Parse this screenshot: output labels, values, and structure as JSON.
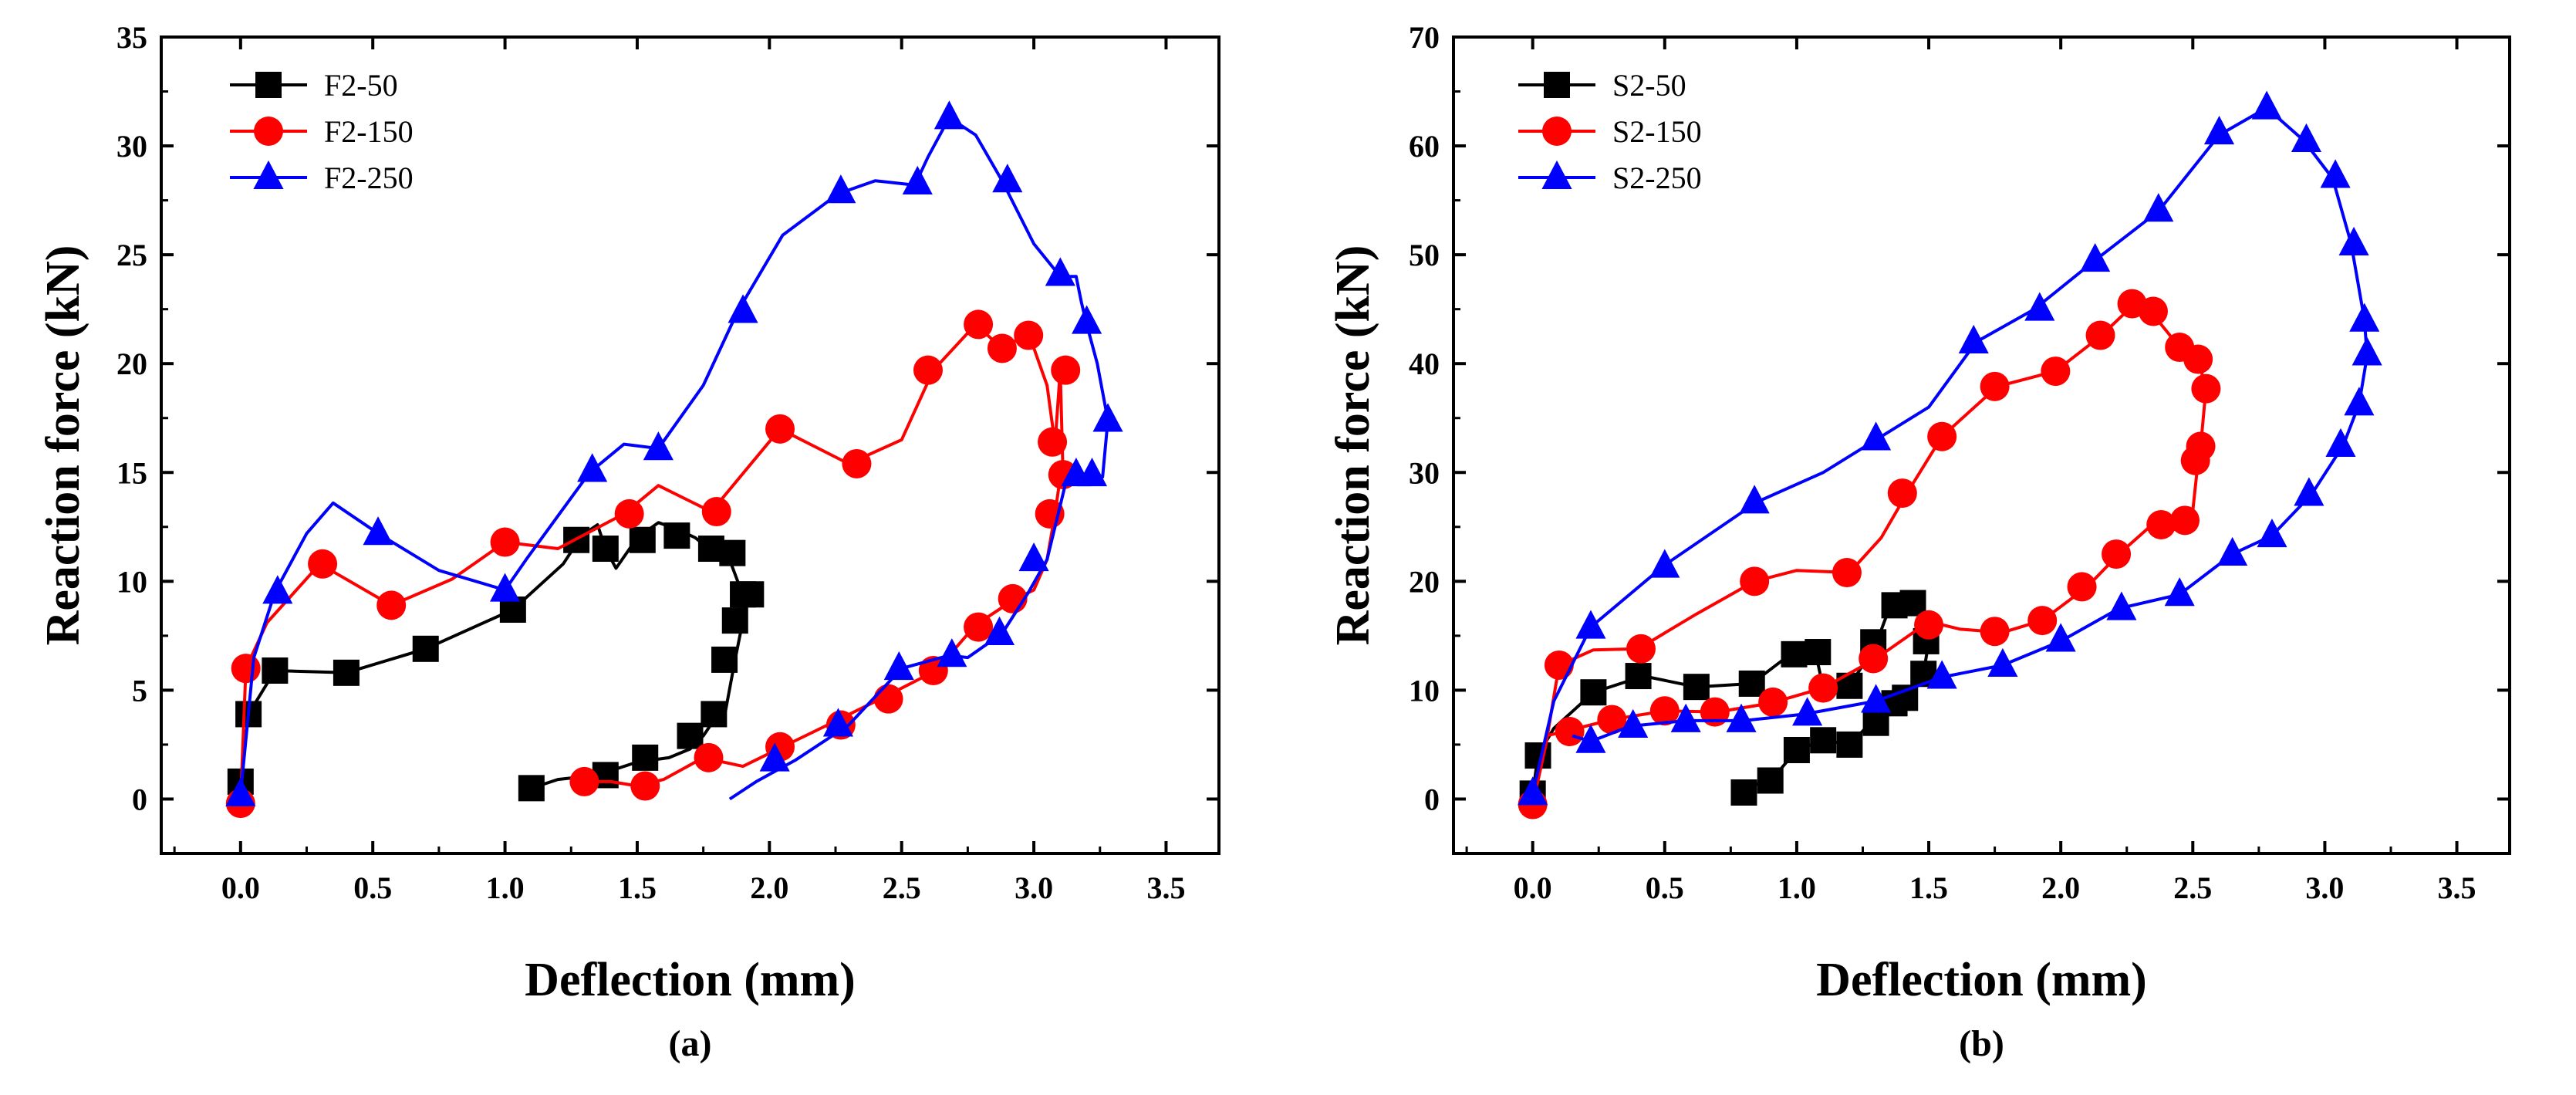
{
  "chart_data": [
    {
      "type": "line",
      "caption": "(a)",
      "xlabel": "Deflection (mm)",
      "ylabel": "Reaction force (kN)",
      "xlim": [
        -0.3,
        3.7
      ],
      "ylim": [
        -2.5,
        35
      ],
      "xticks": [
        "0.0",
        "0.5",
        "1.0",
        "1.5",
        "2.0",
        "2.5",
        "3.0",
        "3.5"
      ],
      "xtick_values": [
        0,
        0.5,
        1,
        1.5,
        2,
        2.5,
        3,
        3.5
      ],
      "yticks": [
        "0",
        "5",
        "10",
        "15",
        "20",
        "25",
        "30",
        "35"
      ],
      "ytick_values": [
        0,
        5,
        10,
        15,
        20,
        25,
        30,
        35
      ],
      "legend_position": "top-left",
      "series": [
        {
          "name": "F2-50",
          "color": "#000000",
          "marker": "square",
          "x": [
            0,
            0.03,
            0.13,
            0.4,
            0.7,
            1.03,
            1.22,
            1.29,
            1.35,
            1.38,
            1.42,
            1.5,
            1.58,
            1.65,
            1.72,
            1.78,
            1.84,
            1.88,
            1.9,
            1.92,
            1.9,
            1.87,
            1.83,
            1.8,
            1.75,
            1.7,
            1.62,
            1.5,
            1.35,
            1.2,
            1.1
          ],
          "y": [
            0.8,
            3.9,
            5.9,
            5.8,
            6.9,
            8.7,
            10.8,
            12.1,
            12.6,
            11.5,
            10.6,
            12.0,
            12.7,
            12.4,
            12.0,
            11.4,
            11.3,
            10.0,
            9.4,
            9.6,
            8.2,
            6.4,
            3.8,
            3.8,
            2.9,
            2.3,
            1.9,
            1.7,
            1.1,
            0.9,
            0.5
          ],
          "markers_x": [
            0,
            0.03,
            0.13,
            0.4,
            0.7,
            1.03,
            1.27,
            1.38,
            1.52,
            1.65,
            1.78,
            1.86,
            1.93,
            1.9,
            1.87,
            1.83,
            1.79,
            1.7,
            1.53,
            1.38,
            1.1
          ],
          "markers_y": [
            0.8,
            3.9,
            5.9,
            5.8,
            6.9,
            8.7,
            11.9,
            11.5,
            11.9,
            12.1,
            11.5,
            11.3,
            9.4,
            9.4,
            8.2,
            6.4,
            3.9,
            2.9,
            1.9,
            1.1,
            0.5
          ]
        },
        {
          "name": "F2-150",
          "color": "#ff0000",
          "marker": "circle",
          "x": [
            0,
            0.02,
            0.1,
            0.3,
            0.57,
            0.8,
            1.0,
            1.2,
            1.45,
            1.58,
            1.78,
            2.04,
            2.3,
            2.5,
            2.62,
            2.78,
            2.88,
            2.98,
            3.05,
            3.08,
            3.1,
            3.11,
            3.1,
            3.08,
            3.05,
            3.0,
            2.93,
            2.78,
            2.63,
            2.42,
            2.22,
            2.05,
            1.9,
            1.75,
            1.6,
            1.5,
            1.4,
            1.28
          ],
          "y": [
            -0.2,
            6.0,
            8.1,
            10.8,
            8.9,
            10.1,
            11.8,
            11.5,
            13.1,
            14.4,
            13.2,
            17.0,
            15.4,
            16.5,
            19.7,
            21.8,
            20.7,
            21.4,
            19.0,
            16.3,
            19.7,
            15.0,
            14.8,
            13.1,
            11.0,
            9.6,
            9.2,
            8.0,
            5.9,
            4.6,
            3.4,
            2.4,
            1.5,
            1.9,
            0.9,
            0.6,
            0.8,
            0.8
          ],
          "markers_x": [
            0,
            0.02,
            0.31,
            0.57,
            1.0,
            1.47,
            1.8,
            2.04,
            2.33,
            2.6,
            2.79,
            2.88,
            2.98,
            3.07,
            3.12,
            3.11,
            3.06,
            2.92,
            2.79,
            2.62,
            2.45,
            2.27,
            2.04,
            1.77,
            1.53,
            1.3
          ],
          "markers_y": [
            -0.2,
            6.0,
            10.8,
            8.9,
            11.8,
            13.1,
            13.2,
            17.0,
            15.4,
            19.7,
            21.8,
            20.7,
            21.3,
            16.4,
            19.7,
            14.9,
            13.1,
            9.2,
            7.9,
            5.9,
            4.6,
            3.4,
            2.4,
            1.9,
            0.6,
            0.8
          ]
        },
        {
          "name": "F2-250",
          "color": "#0000ff",
          "marker": "triangle",
          "x": [
            0,
            0.05,
            0.13,
            0.25,
            0.35,
            0.52,
            0.75,
            1.0,
            1.08,
            1.2,
            1.32,
            1.45,
            1.58,
            1.75,
            1.88,
            2.05,
            2.26,
            2.4,
            2.55,
            2.6,
            2.68,
            2.78,
            2.88,
            3.0,
            3.1,
            3.16,
            3.18,
            3.2,
            3.24,
            3.28,
            3.26,
            3.22,
            3.18,
            3.12,
            3.05,
            2.98,
            2.88,
            2.75,
            2.68,
            2.5,
            2.3,
            2.1,
            1.95,
            1.85
          ],
          "y": [
            0.2,
            6.5,
            9.5,
            12.2,
            13.6,
            12.2,
            10.5,
            9.6,
            11.0,
            13.0,
            15.0,
            16.3,
            16.1,
            19.0,
            22.4,
            25.9,
            27.8,
            28.4,
            28.2,
            29.5,
            31.3,
            30.5,
            28.4,
            25.5,
            24.0,
            24.0,
            22.8,
            21.8,
            20.0,
            17.4,
            14.8,
            14.8,
            14.8,
            14.5,
            11.0,
            9.5,
            7.6,
            6.5,
            6.6,
            6.0,
            3.4,
            1.8,
            0.8,
            0
          ],
          "markers_x": [
            0,
            0.14,
            0.52,
            1.0,
            1.33,
            1.58,
            1.9,
            2.27,
            2.56,
            2.68,
            2.9,
            3.1,
            3.2,
            3.28,
            3.22,
            3.16,
            3.0,
            2.87,
            2.69,
            2.49,
            2.26,
            2.02
          ],
          "markers_y": [
            0.2,
            9.5,
            12.2,
            9.6,
            15.1,
            16.1,
            22.4,
            27.9,
            28.3,
            31.3,
            28.4,
            24.1,
            21.9,
            17.4,
            14.9,
            14.9,
            11.0,
            7.6,
            6.6,
            6.0,
            3.4,
            1.8
          ]
        }
      ]
    },
    {
      "type": "line",
      "caption": "(b)",
      "xlabel": "Deflection (mm)",
      "ylabel": "Reaction force (kN)",
      "xlim": [
        -0.3,
        3.7
      ],
      "ylim": [
        -5,
        70
      ],
      "xticks": [
        "0.0",
        "0.5",
        "1.0",
        "1.5",
        "2.0",
        "2.5",
        "3.0",
        "3.5"
      ],
      "xtick_values": [
        0,
        0.5,
        1,
        1.5,
        2,
        2.5,
        3,
        3.5
      ],
      "yticks": [
        "0",
        "10",
        "20",
        "30",
        "40",
        "50",
        "60",
        "70"
      ],
      "ytick_values": [
        0,
        10,
        20,
        30,
        40,
        50,
        60,
        70
      ],
      "legend_position": "top-left",
      "series": [
        {
          "name": "S2-50",
          "color": "#000000",
          "marker": "square",
          "x": [
            0,
            0.02,
            0.08,
            0.23,
            0.42,
            0.62,
            0.83,
            0.97,
            1.07,
            1.1,
            1.2,
            1.3,
            1.35,
            1.4,
            1.45,
            1.48,
            1.5,
            1.48,
            1.43,
            1.35,
            1.28,
            1.2,
            1.1,
            1.0,
            0.92,
            0.88,
            0.78
          ],
          "y": [
            0.5,
            4.0,
            6.5,
            9.8,
            11.3,
            10.3,
            10.6,
            13.2,
            13.6,
            10.2,
            10.4,
            14.2,
            17.5,
            17.9,
            18.2,
            16.5,
            14.5,
            11.5,
            9.3,
            8.9,
            7.0,
            5.0,
            5.4,
            4.5,
            2.2,
            1.7,
            0.6
          ],
          "markers_x": [
            0,
            0.02,
            0.23,
            0.4,
            0.62,
            0.83,
            0.99,
            1.08,
            1.2,
            1.29,
            1.37,
            1.44,
            1.49,
            1.48,
            1.41,
            1.37,
            1.3,
            1.2,
            1.1,
            1.0,
            0.9,
            0.8
          ],
          "markers_y": [
            0.5,
            4.0,
            9.8,
            11.3,
            10.3,
            10.6,
            13.3,
            13.5,
            10.4,
            14.4,
            17.8,
            18.0,
            14.5,
            11.5,
            9.3,
            8.8,
            7.0,
            5.0,
            5.4,
            4.5,
            1.7,
            0.6
          ]
        },
        {
          "name": "S2-150",
          "color": "#ff0000",
          "marker": "circle",
          "x": [
            0,
            0.05,
            0.1,
            0.23,
            0.4,
            0.62,
            0.84,
            1.0,
            1.2,
            1.32,
            1.42,
            1.55,
            1.76,
            1.98,
            2.15,
            2.28,
            2.35,
            2.45,
            2.52,
            2.55,
            2.53,
            2.52,
            2.5,
            2.46,
            2.35,
            2.22,
            2.1,
            1.93,
            1.78,
            1.62,
            1.5,
            1.3,
            1.1,
            0.9,
            0.7,
            0.5,
            0.3,
            0.12,
            0.05
          ],
          "y": [
            -0.5,
            5.0,
            12.3,
            13.7,
            13.8,
            17.0,
            20.0,
            21.0,
            20.8,
            24.0,
            28.2,
            33.3,
            37.9,
            39.3,
            42.5,
            45.5,
            44.5,
            41.5,
            40.4,
            37.7,
            32.5,
            31.0,
            26.5,
            25.3,
            25.3,
            22.5,
            19.5,
            16.4,
            15.3,
            15.6,
            16.3,
            12.9,
            10.2,
            8.8,
            8.0,
            8.1,
            7.3,
            6.2,
            5.8
          ],
          "markers_x": [
            0,
            0.1,
            0.41,
            0.84,
            1.19,
            1.4,
            1.55,
            1.75,
            1.98,
            2.15,
            2.27,
            2.35,
            2.45,
            2.52,
            2.55,
            2.53,
            2.51,
            2.47,
            2.38,
            2.21,
            2.08,
            1.93,
            1.75,
            1.5,
            1.29,
            1.1,
            0.91,
            0.69,
            0.5,
            0.3,
            0.14
          ],
          "markers_y": [
            -0.5,
            12.3,
            13.8,
            20.0,
            20.8,
            28.1,
            33.3,
            37.9,
            39.3,
            42.6,
            45.5,
            44.8,
            41.5,
            40.4,
            37.7,
            32.4,
            31.1,
            25.6,
            25.2,
            22.5,
            19.5,
            16.4,
            15.4,
            16.0,
            12.9,
            10.2,
            8.9,
            8.0,
            8.1,
            7.3,
            6.2
          ]
        },
        {
          "name": "S2-250",
          "color": "#0000ff",
          "marker": "triangle",
          "x": [
            0,
            0.08,
            0.22,
            0.5,
            0.85,
            1.1,
            1.3,
            1.5,
            1.68,
            1.9,
            2.13,
            2.37,
            2.6,
            2.78,
            2.92,
            3.03,
            3.1,
            3.15,
            3.16,
            3.13,
            3.07,
            2.95,
            2.8,
            2.65,
            2.45,
            2.22,
            2.0,
            1.78,
            1.55,
            1.3,
            1.03,
            0.8,
            0.58,
            0.37,
            0.22,
            0.15
          ],
          "y": [
            0.5,
            9.0,
            15.8,
            21.5,
            27.3,
            30.0,
            33.0,
            36.0,
            42.0,
            45.0,
            49.5,
            54.0,
            61.0,
            63.5,
            60.5,
            57.0,
            51.0,
            44.0,
            40.7,
            36.3,
            32.5,
            28.0,
            24.2,
            22.5,
            18.8,
            17.5,
            14.5,
            12.3,
            11.2,
            9.0,
            7.8,
            7.2,
            7.2,
            6.7,
            5.3,
            5.8
          ],
          "markers_x": [
            0,
            0.22,
            0.5,
            0.84,
            1.3,
            1.67,
            1.92,
            2.13,
            2.37,
            2.6,
            2.78,
            2.93,
            3.04,
            3.11,
            3.15,
            3.16,
            3.13,
            3.06,
            2.94,
            2.8,
            2.65,
            2.45,
            2.23,
            2.0,
            1.78,
            1.55,
            1.3,
            1.04,
            0.79,
            0.58,
            0.38,
            0.22
          ],
          "markers_y": [
            0.5,
            15.8,
            21.4,
            27.3,
            33.1,
            42.0,
            45.0,
            49.5,
            54.1,
            61.2,
            63.5,
            60.5,
            57.2,
            51.0,
            44.0,
            40.9,
            36.3,
            32.5,
            28.0,
            24.2,
            22.5,
            18.8,
            17.5,
            14.6,
            12.3,
            11.2,
            9.0,
            7.8,
            7.2,
            7.2,
            6.7,
            5.3
          ]
        }
      ]
    }
  ]
}
